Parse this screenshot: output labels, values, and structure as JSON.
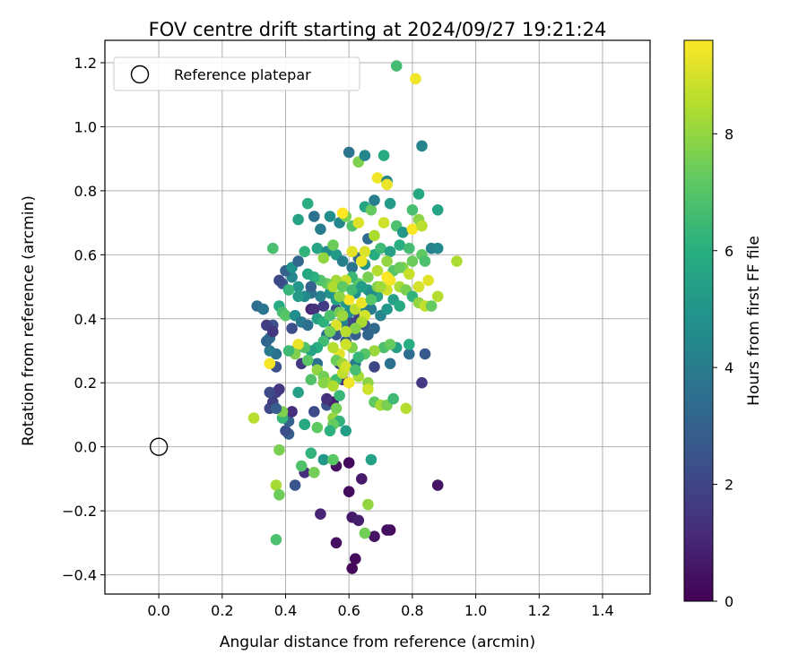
{
  "chart_data": {
    "type": "scatter",
    "title": "FOV centre drift starting at 2024/09/27 19:21:24",
    "xlabel": "Angular distance from reference (arcmin)",
    "ylabel": "Rotation from reference (arcmin)",
    "xlim": [
      -0.17,
      1.55
    ],
    "ylim": [
      -0.46,
      1.27
    ],
    "xticks": [
      "0.0",
      "0.2",
      "0.4",
      "0.6",
      "0.8",
      "1.0",
      "1.2",
      "1.4"
    ],
    "yticks": [
      "−0.4",
      "−0.2",
      "0.0",
      "0.2",
      "0.4",
      "0.6",
      "0.8",
      "1.0",
      "1.2"
    ],
    "grid": true,
    "legend": {
      "position": "top-left",
      "label": "Reference platepar"
    },
    "reference_point": {
      "x": 0.0,
      "y": 0.0
    },
    "colorbar": {
      "label": "Hours from first FF file",
      "min": 0,
      "max": 9.6,
      "ticks": [
        "0",
        "2",
        "4",
        "6",
        "8"
      ],
      "colormap": "viridis"
    },
    "points": [
      [
        0.61,
        -0.38,
        0.2
      ],
      [
        0.62,
        -0.35,
        0.3
      ],
      [
        0.73,
        -0.26,
        0.2
      ],
      [
        0.72,
        -0.26,
        0.4
      ],
      [
        0.68,
        -0.28,
        0.5
      ],
      [
        0.56,
        -0.3,
        0.4
      ],
      [
        0.61,
        -0.22,
        0.6
      ],
      [
        0.63,
        -0.23,
        0.8
      ],
      [
        0.51,
        -0.21,
        1.0
      ],
      [
        0.6,
        -0.14,
        0.3
      ],
      [
        0.88,
        -0.12,
        0.5
      ],
      [
        0.64,
        -0.1,
        0.7
      ],
      [
        0.56,
        -0.06,
        0.4
      ],
      [
        0.6,
        -0.05,
        0.2
      ],
      [
        0.46,
        -0.08,
        1.2
      ],
      [
        0.43,
        -0.12,
        2.5
      ],
      [
        0.41,
        0.04,
        2.8
      ],
      [
        0.4,
        0.05,
        2.3
      ],
      [
        0.41,
        0.08,
        3.0
      ],
      [
        0.35,
        0.12,
        2.1
      ],
      [
        0.36,
        0.14,
        1.8
      ],
      [
        0.37,
        0.17,
        1.7
      ],
      [
        0.38,
        0.18,
        1.5
      ],
      [
        0.35,
        0.17,
        2.2
      ],
      [
        0.42,
        0.11,
        1.2
      ],
      [
        0.46,
        0.07,
        2.0
      ],
      [
        0.49,
        0.11,
        2.2
      ],
      [
        0.53,
        0.13,
        2.4
      ],
      [
        0.55,
        0.14,
        0.8
      ],
      [
        0.53,
        0.15,
        1.3
      ],
      [
        0.45,
        0.26,
        1.6
      ],
      [
        0.37,
        0.25,
        2.4
      ],
      [
        0.58,
        0.21,
        1.4
      ],
      [
        0.57,
        0.26,
        1.8
      ],
      [
        0.68,
        0.25,
        2.0
      ],
      [
        0.83,
        0.2,
        1.6
      ],
      [
        0.84,
        0.29,
        2.7
      ],
      [
        0.79,
        0.29,
        3.4
      ],
      [
        0.73,
        0.26,
        3.6
      ],
      [
        0.62,
        0.26,
        3.8
      ],
      [
        0.5,
        0.26,
        3.5
      ],
      [
        0.43,
        0.3,
        3.2
      ],
      [
        0.37,
        0.29,
        3.6
      ],
      [
        0.35,
        0.3,
        3.9
      ],
      [
        0.35,
        0.34,
        3.4
      ],
      [
        0.36,
        0.38,
        2.4
      ],
      [
        0.34,
        0.38,
        1.8
      ],
      [
        0.36,
        0.36,
        1.5
      ],
      [
        0.42,
        0.37,
        2.3
      ],
      [
        0.48,
        0.43,
        1.0
      ],
      [
        0.49,
        0.43,
        1.4
      ],
      [
        0.52,
        0.44,
        1.7
      ],
      [
        0.56,
        0.43,
        2.3
      ],
      [
        0.6,
        0.39,
        2.1
      ],
      [
        0.63,
        0.4,
        1.9
      ],
      [
        0.65,
        0.38,
        2.6
      ],
      [
        0.62,
        0.35,
        2.9
      ],
      [
        0.66,
        0.35,
        3.1
      ],
      [
        0.68,
        0.37,
        3.3
      ],
      [
        0.59,
        0.33,
        3.0
      ],
      [
        0.56,
        0.35,
        2.7
      ],
      [
        0.53,
        0.35,
        3.4
      ],
      [
        0.55,
        0.37,
        3.8
      ],
      [
        0.58,
        0.39,
        4.2
      ],
      [
        0.6,
        0.42,
        4.6
      ],
      [
        0.64,
        0.44,
        4.4
      ],
      [
        0.67,
        0.43,
        4.0
      ],
      [
        0.7,
        0.41,
        4.3
      ],
      [
        0.72,
        0.43,
        5.0
      ],
      [
        0.74,
        0.46,
        5.4
      ],
      [
        0.76,
        0.44,
        5.8
      ],
      [
        0.69,
        0.47,
        5.6
      ],
      [
        0.66,
        0.49,
        5.2
      ],
      [
        0.62,
        0.48,
        4.8
      ],
      [
        0.59,
        0.45,
        5.1
      ],
      [
        0.56,
        0.46,
        5.5
      ],
      [
        0.54,
        0.48,
        4.9
      ],
      [
        0.51,
        0.47,
        4.2
      ],
      [
        0.48,
        0.48,
        3.6
      ],
      [
        0.46,
        0.47,
        4.5
      ],
      [
        0.44,
        0.5,
        5.0
      ],
      [
        0.42,
        0.53,
        4.4
      ],
      [
        0.39,
        0.51,
        2.6
      ],
      [
        0.38,
        0.52,
        2.1
      ],
      [
        0.4,
        0.55,
        3.0
      ],
      [
        0.42,
        0.56,
        4.8
      ],
      [
        0.44,
        0.58,
        3.2
      ],
      [
        0.46,
        0.61,
        6.2
      ],
      [
        0.5,
        0.62,
        5.6
      ],
      [
        0.53,
        0.61,
        4.6
      ],
      [
        0.56,
        0.6,
        5.2
      ],
      [
        0.58,
        0.58,
        4.1
      ],
      [
        0.61,
        0.56,
        3.7
      ],
      [
        0.63,
        0.59,
        3.3
      ],
      [
        0.65,
        0.57,
        4.9
      ],
      [
        0.68,
        0.6,
        5.9
      ],
      [
        0.7,
        0.62,
        6.5
      ],
      [
        0.73,
        0.61,
        5.4
      ],
      [
        0.76,
        0.63,
        6.0
      ],
      [
        0.79,
        0.62,
        6.6
      ],
      [
        0.83,
        0.6,
        7.2
      ],
      [
        0.86,
        0.62,
        4.2
      ],
      [
        0.88,
        0.62,
        4.5
      ],
      [
        0.84,
        0.58,
        6.8
      ],
      [
        0.8,
        0.58,
        7.4
      ],
      [
        0.77,
        0.56,
        7.8
      ],
      [
        0.74,
        0.55,
        7.0
      ],
      [
        0.72,
        0.58,
        8.0
      ],
      [
        0.69,
        0.55,
        8.5
      ],
      [
        0.66,
        0.53,
        7.6
      ],
      [
        0.63,
        0.51,
        7.1
      ],
      [
        0.61,
        0.53,
        6.4
      ],
      [
        0.59,
        0.52,
        8.8
      ],
      [
        0.56,
        0.52,
        8.2
      ],
      [
        0.53,
        0.51,
        7.3
      ],
      [
        0.51,
        0.52,
        6.9
      ],
      [
        0.49,
        0.53,
        6.1
      ],
      [
        0.47,
        0.54,
        5.7
      ],
      [
        0.44,
        0.47,
        5.2
      ],
      [
        0.41,
        0.49,
        6.3
      ],
      [
        0.38,
        0.44,
        5.8
      ],
      [
        0.39,
        0.42,
        6.7
      ],
      [
        0.4,
        0.41,
        7.0
      ],
      [
        0.43,
        0.41,
        4.7
      ],
      [
        0.45,
        0.39,
        3.9
      ],
      [
        0.47,
        0.38,
        3.5
      ],
      [
        0.5,
        0.4,
        5.4
      ],
      [
        0.52,
        0.39,
        6.1
      ],
      [
        0.54,
        0.41,
        6.8
      ],
      [
        0.57,
        0.42,
        7.5
      ],
      [
        0.58,
        0.41,
        8.1
      ],
      [
        0.62,
        0.43,
        8.6
      ],
      [
        0.65,
        0.41,
        9.0
      ],
      [
        0.64,
        0.45,
        9.3
      ],
      [
        0.6,
        0.46,
        9.5
      ],
      [
        0.57,
        0.47,
        7.9
      ],
      [
        0.55,
        0.5,
        8.4
      ],
      [
        0.58,
        0.5,
        7.2
      ],
      [
        0.61,
        0.49,
        6.6
      ],
      [
        0.64,
        0.5,
        5.3
      ],
      [
        0.67,
        0.48,
        4.7
      ],
      [
        0.69,
        0.5,
        7.7
      ],
      [
        0.72,
        0.49,
        8.9
      ],
      [
        0.73,
        0.52,
        9.4
      ],
      [
        0.76,
        0.5,
        8.3
      ],
      [
        0.78,
        0.49,
        7.6
      ],
      [
        0.8,
        0.47,
        6.2
      ],
      [
        0.82,
        0.45,
        8.0
      ],
      [
        0.84,
        0.44,
        8.7
      ],
      [
        0.86,
        0.44,
        7.3
      ],
      [
        0.88,
        0.47,
        8.5
      ],
      [
        0.85,
        0.52,
        9.2
      ],
      [
        0.82,
        0.5,
        9.0
      ],
      [
        0.79,
        0.54,
        8.8
      ],
      [
        0.76,
        0.56,
        7.4
      ],
      [
        0.72,
        0.53,
        9.6
      ],
      [
        0.7,
        0.5,
        8.2
      ],
      [
        0.67,
        0.46,
        7.0
      ],
      [
        0.64,
        0.39,
        8.4
      ],
      [
        0.62,
        0.37,
        7.8
      ],
      [
        0.59,
        0.36,
        8.6
      ],
      [
        0.56,
        0.38,
        9.1
      ],
      [
        0.54,
        0.36,
        7.5
      ],
      [
        0.52,
        0.33,
        6.6
      ],
      [
        0.5,
        0.31,
        6.0
      ],
      [
        0.48,
        0.3,
        5.5
      ],
      [
        0.46,
        0.31,
        6.9
      ],
      [
        0.44,
        0.32,
        9.3
      ],
      [
        0.43,
        0.29,
        7.7
      ],
      [
        0.41,
        0.3,
        6.5
      ],
      [
        0.47,
        0.27,
        7.1
      ],
      [
        0.5,
        0.24,
        8.0
      ],
      [
        0.52,
        0.22,
        7.5
      ],
      [
        0.54,
        0.2,
        8.2
      ],
      [
        0.56,
        0.21,
        6.6
      ],
      [
        0.58,
        0.23,
        8.7
      ],
      [
        0.6,
        0.2,
        9.4
      ],
      [
        0.63,
        0.22,
        8.3
      ],
      [
        0.66,
        0.2,
        7.9
      ],
      [
        0.66,
        0.18,
        8.9
      ],
      [
        0.68,
        0.14,
        7.2
      ],
      [
        0.7,
        0.13,
        8.3
      ],
      [
        0.72,
        0.13,
        7.6
      ],
      [
        0.74,
        0.15,
        6.5
      ],
      [
        0.78,
        0.12,
        8.5
      ],
      [
        0.79,
        0.32,
        6.0
      ],
      [
        0.75,
        0.31,
        5.4
      ],
      [
        0.71,
        0.31,
        6.8
      ],
      [
        0.73,
        0.32,
        7.3
      ],
      [
        0.68,
        0.3,
        8.1
      ],
      [
        0.65,
        0.29,
        7.0
      ],
      [
        0.63,
        0.28,
        6.3
      ],
      [
        0.61,
        0.31,
        7.7
      ],
      [
        0.59,
        0.32,
        8.9
      ],
      [
        0.57,
        0.29,
        9.2
      ],
      [
        0.55,
        0.31,
        8.5
      ],
      [
        0.56,
        0.27,
        7.4
      ],
      [
        0.58,
        0.26,
        8.1
      ],
      [
        0.59,
        0.25,
        9.0
      ],
      [
        0.62,
        0.24,
        6.7
      ],
      [
        0.48,
        0.21,
        6.9
      ],
      [
        0.52,
        0.2,
        7.8
      ],
      [
        0.55,
        0.19,
        8.4
      ],
      [
        0.57,
        0.16,
        6.4
      ],
      [
        0.56,
        0.12,
        7.5
      ],
      [
        0.55,
        0.09,
        8.0
      ],
      [
        0.57,
        0.08,
        6.2
      ],
      [
        0.55,
        0.07,
        7.3
      ],
      [
        0.59,
        0.05,
        5.3
      ],
      [
        0.54,
        0.05,
        6.1
      ],
      [
        0.5,
        0.06,
        7.2
      ],
      [
        0.46,
        0.07,
        5.8
      ],
      [
        0.44,
        0.17,
        5.4
      ],
      [
        0.39,
        0.09,
        6.3
      ],
      [
        0.39,
        0.11,
        7.7
      ],
      [
        0.3,
        0.09,
        8.6
      ],
      [
        0.35,
        0.26,
        9.5
      ],
      [
        0.31,
        0.44,
        3.4
      ],
      [
        0.33,
        0.43,
        3.7
      ],
      [
        0.34,
        0.33,
        3.1
      ],
      [
        0.36,
        0.62,
        6.7
      ],
      [
        0.37,
        0.12,
        2.8
      ],
      [
        0.48,
        -0.02,
        6.2
      ],
      [
        0.52,
        -0.04,
        5.1
      ],
      [
        0.55,
        -0.04,
        7.1
      ],
      [
        0.49,
        -0.08,
        7.5
      ],
      [
        0.45,
        -0.06,
        6.9
      ],
      [
        0.38,
        -0.01,
        7.6
      ],
      [
        0.37,
        -0.12,
        8.3
      ],
      [
        0.38,
        -0.15,
        7.4
      ],
      [
        0.67,
        -0.04,
        5.5
      ],
      [
        0.66,
        -0.18,
        8.0
      ],
      [
        0.65,
        -0.27,
        7.5
      ],
      [
        0.37,
        -0.29,
        6.8
      ],
      [
        0.57,
        0.7,
        4.4
      ],
      [
        0.59,
        0.72,
        7.6
      ],
      [
        0.61,
        0.69,
        6.9
      ],
      [
        0.6,
        0.92,
        3.7
      ],
      [
        0.63,
        0.89,
        7.7
      ],
      [
        0.65,
        0.91,
        4.4
      ],
      [
        0.69,
        0.84,
        9.4
      ],
      [
        0.71,
        0.91,
        5.8
      ],
      [
        0.72,
        0.83,
        4.2
      ],
      [
        0.72,
        0.82,
        9.3
      ],
      [
        0.65,
        0.75,
        5.6
      ],
      [
        0.67,
        0.74,
        7.3
      ],
      [
        0.68,
        0.77,
        4.1
      ],
      [
        0.73,
        0.76,
        5.2
      ],
      [
        0.75,
        0.69,
        6.8
      ],
      [
        0.77,
        0.67,
        5.1
      ],
      [
        0.8,
        0.68,
        9.5
      ],
      [
        0.82,
        0.71,
        7.9
      ],
      [
        0.8,
        0.74,
        6.7
      ],
      [
        0.83,
        0.69,
        8.6
      ],
      [
        0.82,
        0.79,
        5.7
      ],
      [
        0.83,
        0.94,
        4.3
      ],
      [
        0.88,
        0.74,
        5.6
      ],
      [
        0.94,
        0.58,
        8.4
      ],
      [
        0.71,
        0.7,
        8.9
      ],
      [
        0.63,
        0.7,
        9.1
      ],
      [
        0.58,
        0.73,
        9.6
      ],
      [
        0.54,
        0.72,
        4.7
      ],
      [
        0.49,
        0.72,
        3.6
      ],
      [
        0.44,
        0.71,
        5.5
      ],
      [
        0.47,
        0.76,
        6.0
      ],
      [
        0.51,
        0.68,
        4.0
      ],
      [
        0.61,
        0.61,
        9.2
      ],
      [
        0.66,
        0.65,
        3.4
      ],
      [
        0.68,
        0.66,
        8.4
      ],
      [
        0.65,
        0.61,
        9.1
      ],
      [
        0.64,
        0.58,
        9.3
      ],
      [
        0.55,
        0.63,
        7.4
      ],
      [
        0.52,
        0.59,
        8.0
      ],
      [
        0.48,
        0.5,
        3.0
      ],
      [
        0.75,
        1.19,
        6.6
      ],
      [
        0.81,
        1.15,
        9.4
      ]
    ]
  }
}
